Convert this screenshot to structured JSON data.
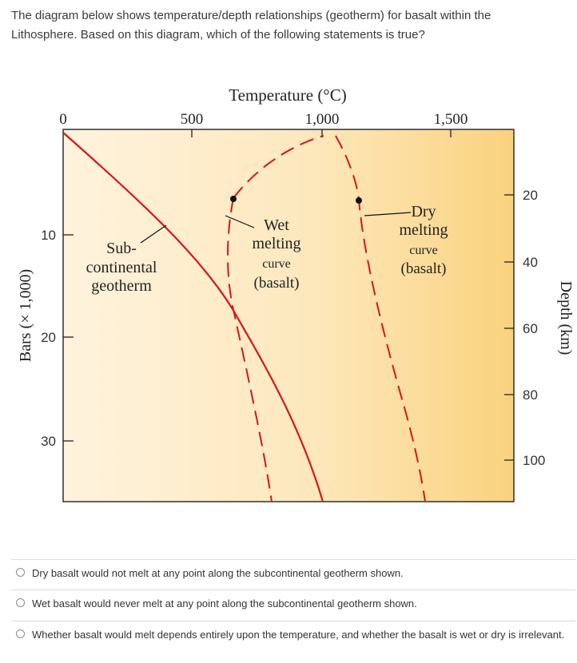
{
  "question": {
    "line1": "The diagram below shows temperature/depth relationships (geotherm) for basalt within the",
    "line2": "Lithosphere. Based on this diagram, which of the following statements is true?"
  },
  "diagram": {
    "top_axis_title": "Temperature (°C)",
    "top_ticks": [
      "0",
      "500",
      "1,000",
      "1,500"
    ],
    "left_axis_title": "Bars (× 1,000)",
    "left_ticks": [
      "10",
      "20",
      "30"
    ],
    "right_axis_title": "Depth (km)",
    "right_ticks": [
      "20",
      "40",
      "60",
      "80",
      "100"
    ],
    "labels": {
      "geotherm": [
        "Sub-",
        "continental",
        "geotherm"
      ],
      "wet": [
        "Wet",
        "melting",
        "curve",
        "(basalt)"
      ],
      "dry": [
        "Dry",
        "melting",
        "curve",
        "(basalt)"
      ]
    },
    "colors": {
      "geotherm": "#d8141c",
      "bg_light": "#fff3dd",
      "bg_dark": "#f9d27e",
      "frame": "#222222"
    }
  },
  "options": [
    {
      "text": "Dry basalt would not melt at any point along the subcontinental geotherm shown."
    },
    {
      "text": "Wet basalt would never melt at any point along the subcontinental geotherm shown."
    },
    {
      "text": "Whether basalt would melt depends entirely upon the temperature, and whether the basalt is wet or dry is irrelevant."
    }
  ]
}
